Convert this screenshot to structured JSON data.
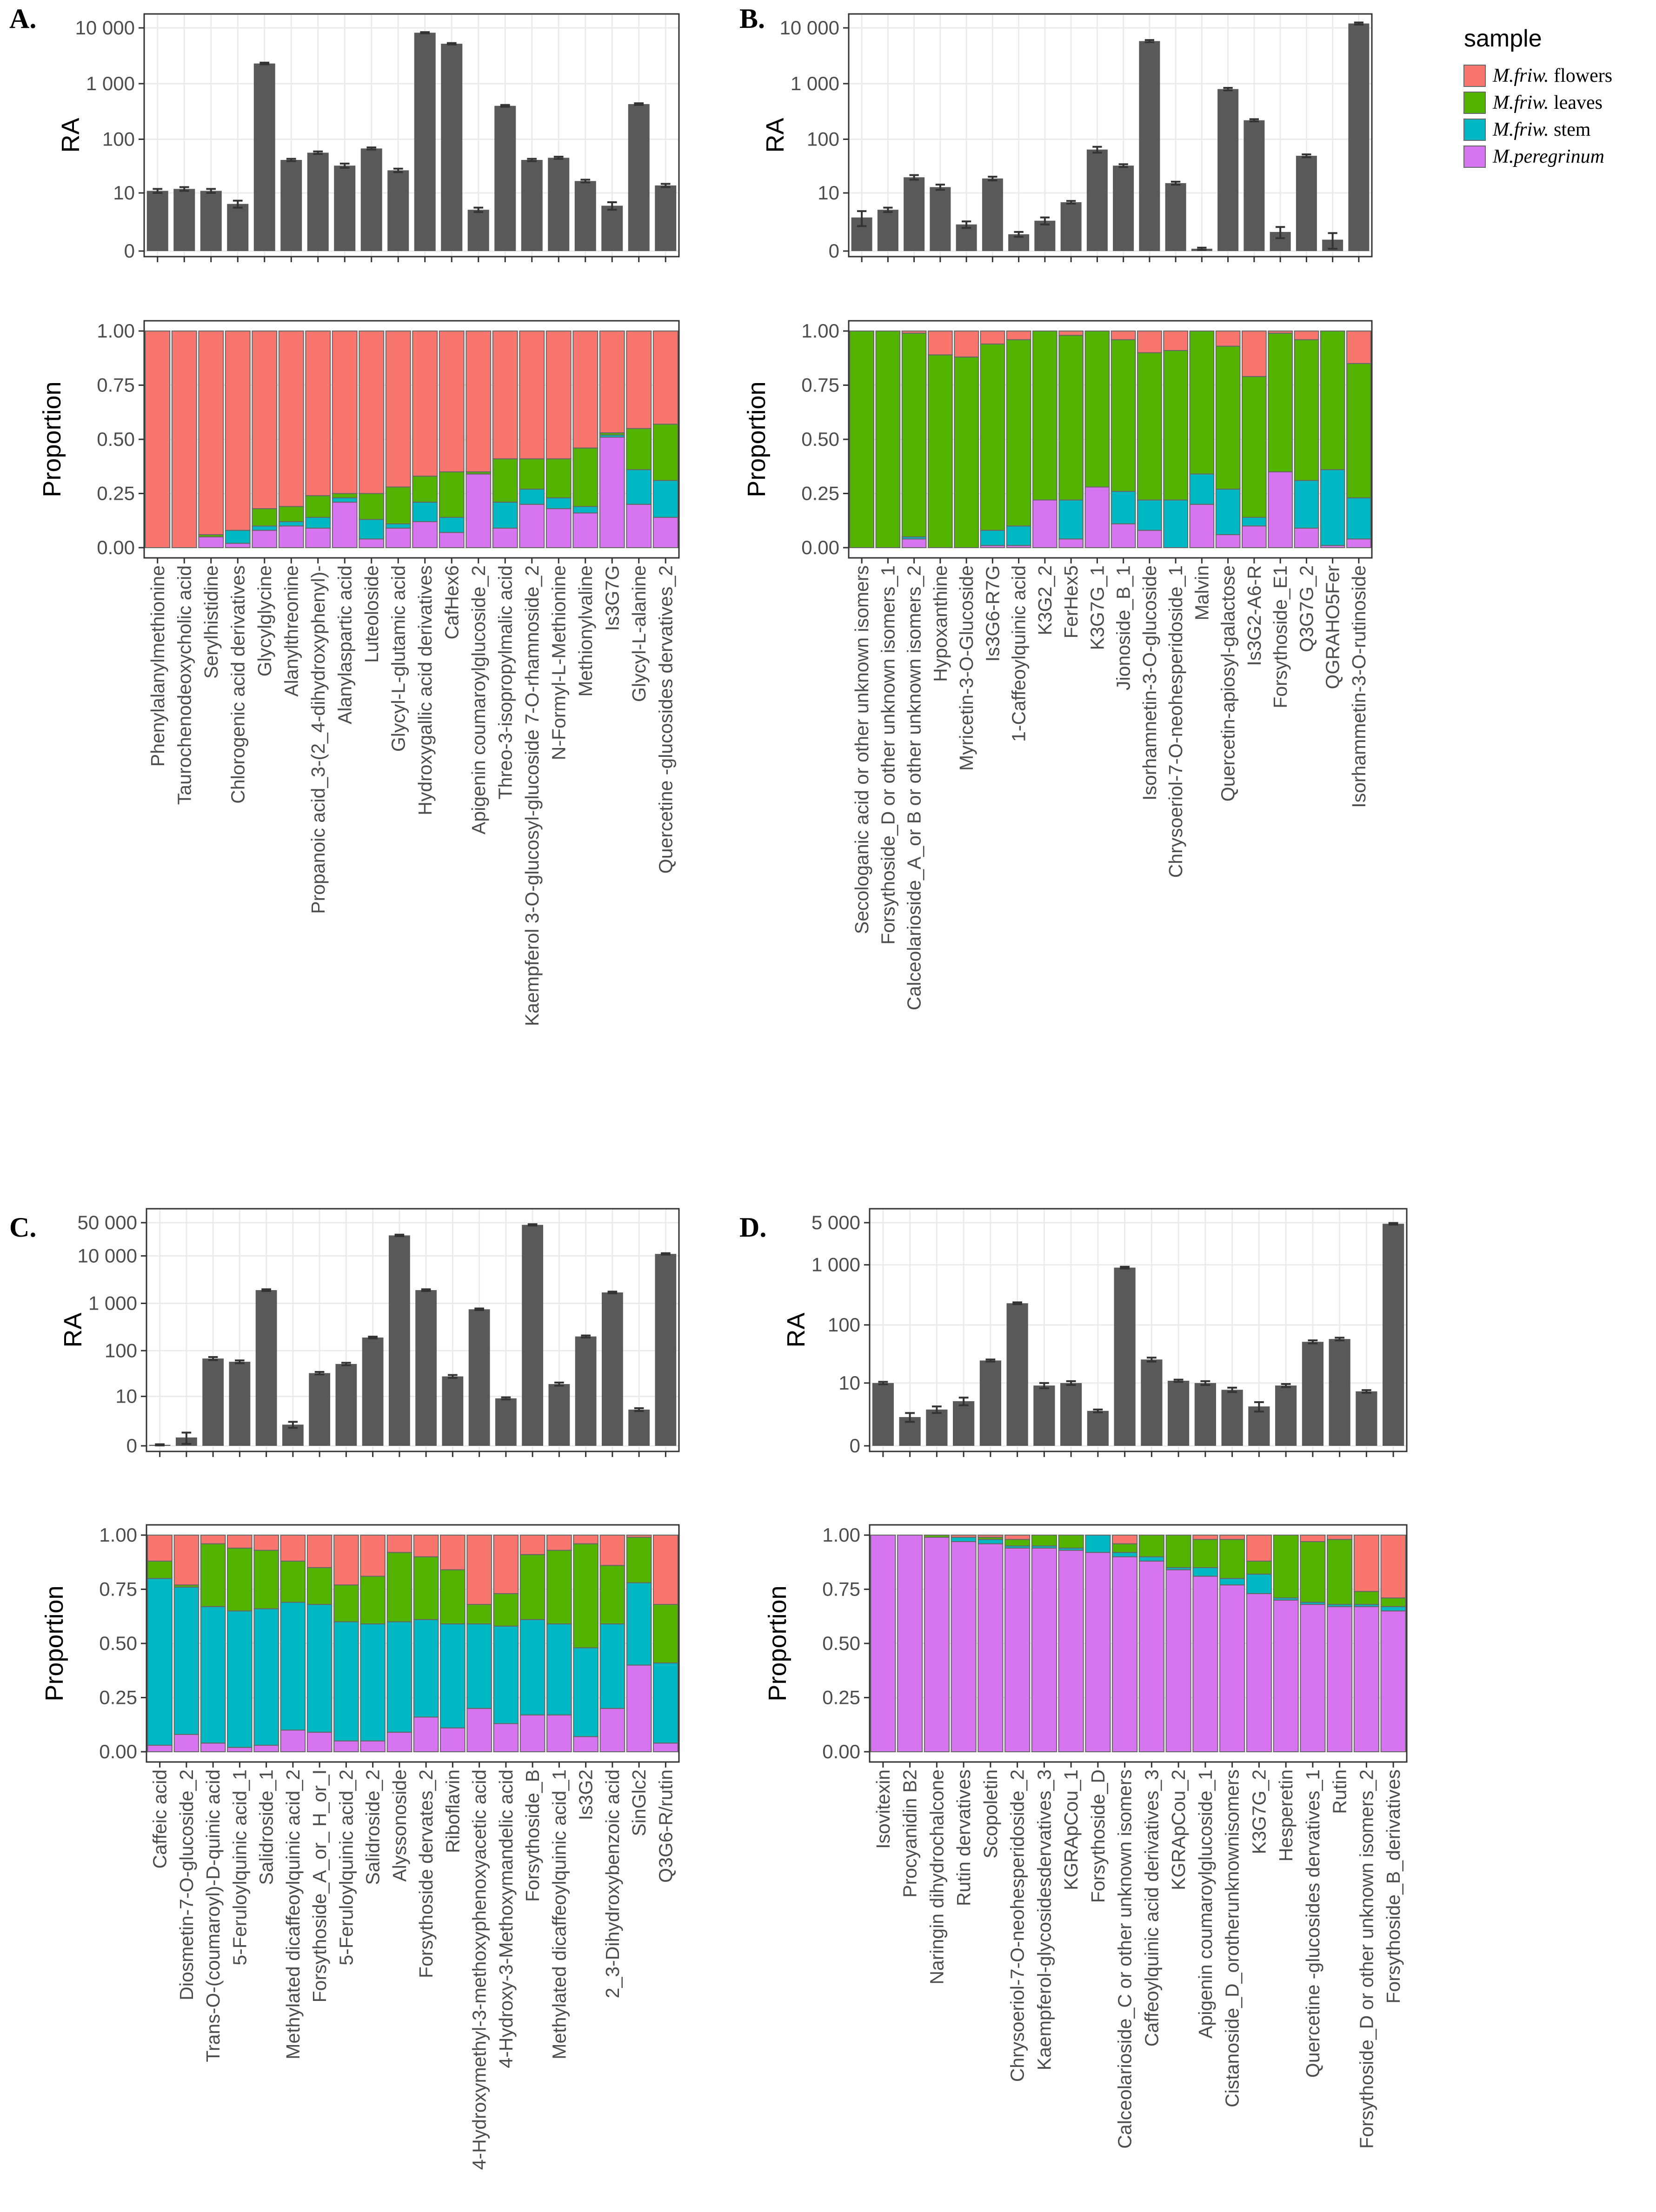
{
  "colors": {
    "flowers": "#F8766D",
    "leaves": "#53B400",
    "stem": "#00B8C4",
    "peregrinum": "#D774F0",
    "ra_bar": "#595959",
    "panel_border": "#333333",
    "grid": "#EBEBEB"
  },
  "legend": {
    "title": "sample",
    "items": [
      {
        "label": "M.friw. flowers",
        "italic": "M.friw.",
        "rest": " flowers",
        "color_key": "flowers"
      },
      {
        "label": "M.friw. leaves",
        "italic": "M.friw.",
        "rest": " leaves",
        "color_key": "leaves"
      },
      {
        "label": "M.friw. stem",
        "italic": "M.friw.",
        "rest": " stem",
        "color_key": "stem"
      },
      {
        "label": "M.peregrinum",
        "italic": "M.peregrinum",
        "rest": "",
        "color_key": "peregrinum"
      }
    ]
  },
  "chart_data": [
    {
      "panel": "A.",
      "type": "bar",
      "ra_ylabel": "RA",
      "prop_ylabel": "Proportion",
      "ra_ticks": [
        "0",
        "10",
        "100",
        "1 000",
        "10 000"
      ],
      "prop_ticks": [
        "0.00",
        "0.25",
        "0.50",
        "0.75",
        "1.00"
      ],
      "categories": [
        "Phenylalanylmethionine",
        "Taurochenodeoxycholic acid",
        "Serylhistidine",
        "Chlorogenic acid derivatives",
        "Glycylglycine",
        "Alanylthreonine",
        "Propanoic acid_3-(2_4-dihydroxyphenyl)-",
        "Alanylaspartic acid",
        "Luteoloside",
        "Glycyl-L-glutamic acid",
        "Hydroxygallic acid derivatives",
        "CafHex6",
        "Apigenin coumaroylglucoside_2",
        "Threo-3-isopropylmalic acid",
        "Kaempferol 3-O-glucosyl-glucoside 7-O-rhamnoside_2",
        "N-Formyl-L-Methionine",
        "Methionylvaline",
        "Is3G7G",
        "Glycyl-L-alanine",
        "Quercetine -glucosides dervatives_2"
      ],
      "ra": [
        11,
        12,
        11,
        6,
        2300,
        42,
        57,
        33,
        68,
        27,
        8200,
        5200,
        4.5,
        400,
        42,
        46,
        17,
        5.5,
        430,
        14
      ],
      "ra_err": [
        1,
        1,
        1,
        1,
        80,
        2,
        3,
        3,
        3,
        2,
        200,
        150,
        0.5,
        15,
        2,
        2,
        1,
        1,
        15,
        1
      ],
      "proportion": {
        "peregrinum": [
          0,
          0,
          0.05,
          0.02,
          0.08,
          0.1,
          0.09,
          0.21,
          0.04,
          0.09,
          0.12,
          0.07,
          0.34,
          0.09,
          0.2,
          0.18,
          0.16,
          0.51,
          0.2,
          0.14
        ],
        "stem": [
          0,
          0,
          0,
          0.06,
          0.02,
          0.02,
          0.05,
          0.02,
          0.09,
          0.02,
          0.09,
          0.07,
          0.0,
          0.12,
          0.07,
          0.05,
          0.03,
          0.01,
          0.16,
          0.17
        ],
        "leaves": [
          0,
          0,
          0.01,
          0,
          0.08,
          0.07,
          0.1,
          0.02,
          0.12,
          0.17,
          0.12,
          0.21,
          0.01,
          0.2,
          0.14,
          0.18,
          0.27,
          0.01,
          0.19,
          0.26
        ],
        "flowers": [
          1,
          1,
          0.94,
          0.92,
          0.82,
          0.81,
          0.76,
          0.75,
          0.75,
          0.72,
          0.67,
          0.65,
          0.65,
          0.59,
          0.59,
          0.59,
          0.54,
          0.47,
          0.45,
          0.43
        ]
      }
    },
    {
      "panel": "B.",
      "type": "bar",
      "ra_ylabel": "RA",
      "prop_ylabel": "Proportion",
      "ra_ticks": [
        "0",
        "10",
        "100",
        "1 000",
        "10 000"
      ],
      "prop_ticks": [
        "0.00",
        "0.25",
        "0.50",
        "0.75",
        "1.00"
      ],
      "categories": [
        "Secologanic acid or other unknown isomers",
        "Forsythoside_D or other unknown isomers_1",
        "Calceolarioside_A_or B or other unknown isomers_2",
        "Hypoxanthine",
        "Myricetin-3-O-Glucoside",
        "Is3G6-R7G",
        "1-Caffeoylquinic acid",
        "K3G2_2",
        "FerHex5",
        "K3G7G_1",
        "Jionoside_B_1",
        "Isorhamnetin-3-O-glucoside",
        "Chrysoeriol-7-O-neohesperidoside_1",
        "Malvin",
        "Quercetin-apiosyl-galactose",
        "Is3G2-A6-R",
        "Forsythoside_E1",
        "Q3G7G_2",
        "QGRAHO5Fer",
        "Isorhammetin-3-O-rutinoside"
      ],
      "ra": [
        3,
        4.5,
        20,
        13,
        2,
        19,
        1,
        2.5,
        6.5,
        65,
        33,
        5800,
        15.5,
        0.1,
        800,
        220,
        1.2,
        50,
        0.6,
        12000
      ],
      "ra_err": [
        1.2,
        0.5,
        2,
        1.5,
        0.4,
        1.5,
        0.2,
        0.5,
        0.4,
        8,
        2,
        250,
        1,
        0.05,
        40,
        10,
        0.5,
        3,
        0.5,
        500
      ],
      "proportion": {
        "peregrinum": [
          0,
          0,
          0.04,
          0,
          0,
          0.01,
          0.01,
          0.22,
          0.04,
          0.28,
          0.11,
          0.08,
          0,
          0.2,
          0.06,
          0.1,
          0.35,
          0.09,
          0.01,
          0.04
        ],
        "stem": [
          0,
          0,
          0.01,
          0,
          0,
          0.07,
          0.09,
          0,
          0.18,
          0,
          0.15,
          0.14,
          0.22,
          0.14,
          0.21,
          0.04,
          0,
          0.22,
          0.35,
          0.19
        ],
        "leaves": [
          1,
          1,
          0.94,
          0.89,
          0.88,
          0.86,
          0.86,
          0.78,
          0.76,
          0.72,
          0.7,
          0.68,
          0.69,
          0.66,
          0.66,
          0.65,
          0.64,
          0.65,
          0.64,
          0.62
        ],
        "flowers": [
          0,
          0,
          0.01,
          0.11,
          0.12,
          0.06,
          0.04,
          0,
          0.02,
          0,
          0.04,
          0.1,
          0.09,
          0,
          0.07,
          0.21,
          0.01,
          0.04,
          0,
          0.15
        ]
      }
    },
    {
      "panel": "C.",
      "type": "bar",
      "ra_ylabel": "RA",
      "prop_ylabel": "Proportion",
      "ra_ticks": [
        "0",
        "10",
        "100",
        "1 000",
        "10 000",
        "50 000"
      ],
      "prop_ticks": [
        "0.00",
        "0.25",
        "0.50",
        "0.75",
        "1.00"
      ],
      "categories": [
        "Caffeic acid",
        "Diosmetin-7-O-glucoside_2",
        "Trans-O-(coumaroyl)-D-quinic acid",
        "5-Feruloylquinic acid_1",
        "Salidroside_1",
        "Methylated dicaffeoylquinic acid_2",
        "Forsythoside_A_or_ H_or_I",
        "5-Feruloylquinic acid_2",
        "Salidroside_2",
        "Alyssonoside",
        "Forsythoside dervates_2",
        "Riboflavin",
        "4-Hydroxymethyl-3-methoxyphenoxyacetic acid",
        "4-Hydroxy-3-Methoxymandelic acid",
        "Forsythoside_B",
        "Methylated dicaffeoylquinic acid_1",
        "Is3G2",
        "2_3-Dihydroxybenzoic acid",
        "SinGlc2",
        "Q3G6-R/rutin"
      ],
      "ra": [
        0.05,
        0.5,
        68,
        58,
        1900,
        1.8,
        33,
        52,
        190,
        27000,
        1900,
        28,
        750,
        9,
        45000,
        19,
        200,
        1700,
        4.8,
        11000
      ],
      "ra_err": [
        0.03,
        0.4,
        5,
        4,
        80,
        0.4,
        2,
        3,
        8,
        1000,
        80,
        2,
        30,
        0.5,
        1500,
        1.5,
        10,
        70,
        0.4,
        400
      ],
      "proportion": {
        "peregrinum": [
          0.03,
          0.08,
          0.04,
          0.02,
          0.03,
          0.1,
          0.09,
          0.05,
          0.05,
          0.09,
          0.16,
          0.11,
          0.2,
          0.13,
          0.17,
          0.17,
          0.07,
          0.2,
          0.4,
          0.04
        ],
        "stem": [
          0.77,
          0.68,
          0.63,
          0.63,
          0.63,
          0.59,
          0.59,
          0.55,
          0.54,
          0.51,
          0.45,
          0.48,
          0.39,
          0.45,
          0.44,
          0.42,
          0.41,
          0.39,
          0.38,
          0.37
        ],
        "leaves": [
          0.08,
          0.01,
          0.29,
          0.29,
          0.27,
          0.19,
          0.17,
          0.17,
          0.22,
          0.32,
          0.29,
          0.25,
          0.09,
          0.15,
          0.3,
          0.34,
          0.48,
          0.27,
          0.21,
          0.27
        ],
        "flowers": [
          0.12,
          0.23,
          0.04,
          0.06,
          0.07,
          0.12,
          0.15,
          0.23,
          0.19,
          0.08,
          0.1,
          0.16,
          0.32,
          0.27,
          0.09,
          0.07,
          0.04,
          0.14,
          0.01,
          0.32
        ]
      }
    },
    {
      "panel": "D.",
      "type": "bar",
      "ra_ylabel": "RA",
      "prop_ylabel": "Proportion",
      "ra_ticks": [
        "0",
        "10",
        "100",
        "1 000",
        "5 000"
      ],
      "prop_ticks": [
        "0.00",
        "0.25",
        "0.50",
        "0.75",
        "1.00"
      ],
      "categories": [
        "Isovitexin",
        "Procyanidin B2",
        "Naringin dihydrochalcone",
        "Rutin dervatives",
        "Scopoletin",
        "Chrysoeriol-7-O-neohesperidoside_2",
        "Kaempferol-glycosidesdervatives_3",
        "KGRApCou_1",
        "Forsythoside_D",
        "Calceolarioside_C or other unknown isomers",
        "Caffeoylquinic acid derivatives_3",
        "KGRApCou_2",
        "Apigenin coumaroylglucoside_1",
        "Cistanoside_D_orotherunknownisomers",
        "K3G7G_2",
        "Hesperetin",
        "Quercetine -glucosides dervatives_1",
        "Rutin",
        "Forsythoside_D or other unknown isomers_2",
        "Forsythoside_B_derivatives"
      ],
      "ra": [
        10,
        2,
        3,
        4.5,
        25,
        230,
        9,
        10,
        2.8,
        900,
        26,
        11,
        10,
        7.5,
        3.5,
        9,
        52,
        58,
        7,
        4800
      ],
      "ra_err": [
        0.5,
        0.5,
        0.5,
        0.8,
        1,
        8,
        1,
        0.8,
        0.2,
        30,
        2,
        0.5,
        0.8,
        0.7,
        0.8,
        0.6,
        3,
        3,
        0.4,
        150
      ],
      "proportion": {
        "peregrinum": [
          1.0,
          1.0,
          0.99,
          0.97,
          0.96,
          0.94,
          0.94,
          0.93,
          0.92,
          0.9,
          0.88,
          0.84,
          0.81,
          0.77,
          0.73,
          0.7,
          0.68,
          0.67,
          0.67,
          0.65
        ],
        "stem": [
          0,
          0,
          0,
          0.02,
          0.02,
          0.01,
          0.01,
          0.01,
          0.08,
          0.02,
          0.02,
          0.01,
          0.04,
          0.03,
          0.09,
          0.01,
          0.01,
          0.01,
          0.01,
          0.02
        ],
        "leaves": [
          0,
          0,
          0.01,
          0,
          0.01,
          0.03,
          0.05,
          0.06,
          0,
          0.04,
          0.1,
          0.15,
          0.13,
          0.18,
          0.06,
          0.29,
          0.28,
          0.3,
          0.06,
          0.04
        ],
        "flowers": [
          0,
          0,
          0,
          0.01,
          0.01,
          0.02,
          0,
          0,
          0,
          0.04,
          0,
          0,
          0.02,
          0.02,
          0.12,
          0,
          0.03,
          0.02,
          0.26,
          0.29
        ]
      }
    }
  ]
}
